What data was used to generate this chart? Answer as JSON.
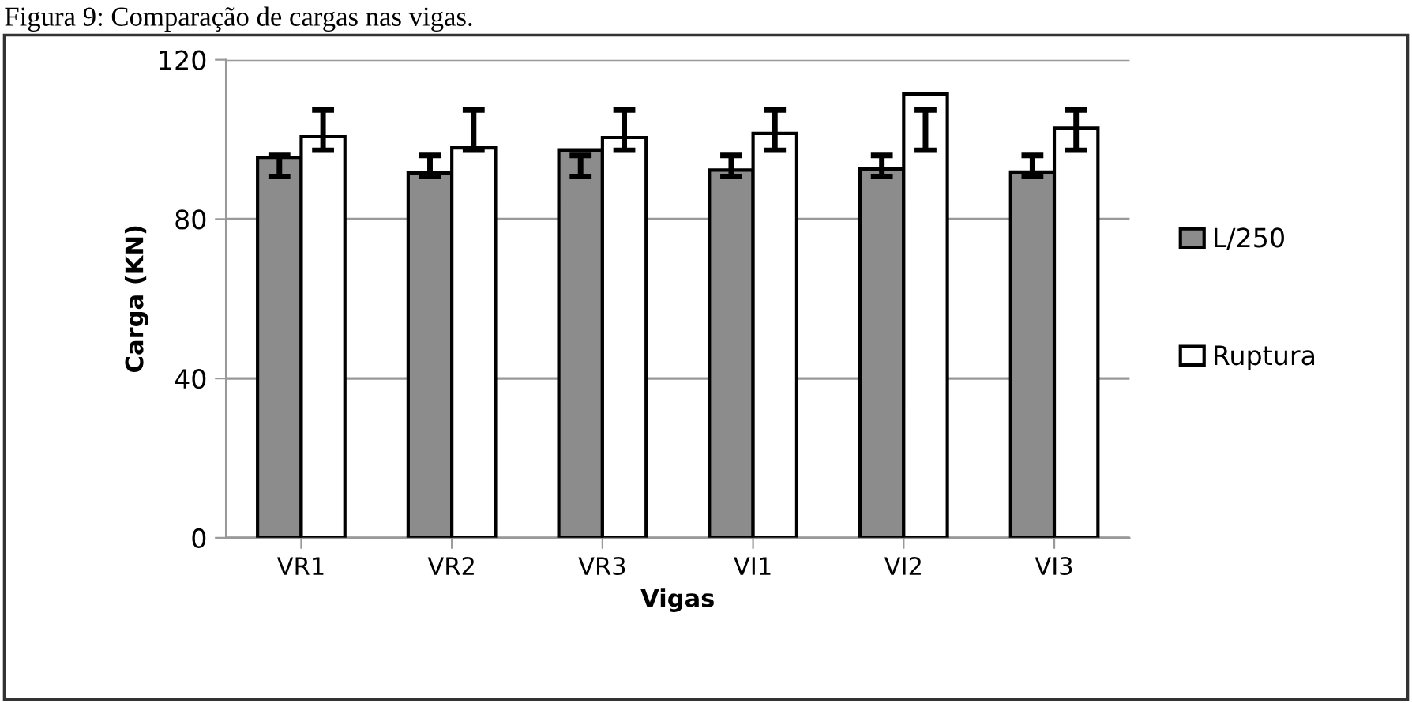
{
  "chart_data": {
    "type": "bar",
    "title": "Figura 9: Comparação de cargas nas vigas.",
    "xlabel": "Vigas",
    "ylabel": "Carga (KN)",
    "categories": [
      "VR1",
      "VR2",
      "VR3",
      "VI1",
      "VI2",
      "VI3"
    ],
    "series": [
      {
        "name": "L/250",
        "color": "#8c8c8c",
        "values": [
          95.5,
          91.6,
          97.2,
          92.3,
          92.6,
          91.8
        ],
        "errors": [
          [
            90.7,
            96
          ],
          [
            90.7,
            96
          ],
          [
            90.7,
            96
          ],
          [
            90.7,
            96
          ],
          [
            90.7,
            96
          ],
          [
            90.7,
            96
          ]
        ]
      },
      {
        "name": "Ruptura",
        "color": "#ffffff",
        "values": [
          100.7,
          97.9,
          100.5,
          101.5,
          111.4,
          102.8
        ],
        "errors": [
          [
            97.3,
            107.4
          ],
          [
            97.3,
            107.4
          ],
          [
            97.3,
            107.4
          ],
          [
            97.3,
            107.4
          ],
          [
            97.3,
            107.4
          ],
          [
            97.3,
            107.4
          ]
        ]
      }
    ],
    "ylim": [
      0,
      120
    ],
    "yticks": [
      0,
      40,
      80,
      120
    ],
    "grid": "y",
    "legend": "right"
  }
}
